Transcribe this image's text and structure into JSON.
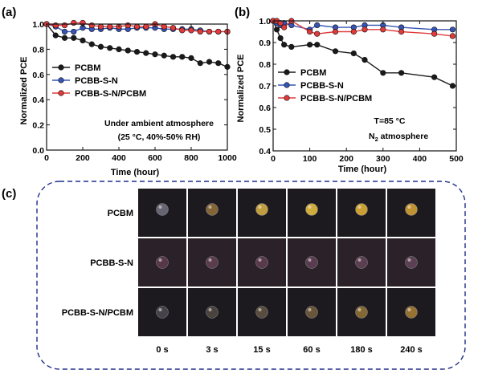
{
  "chart_data": [
    {
      "panel": "(a)",
      "type": "line",
      "xlabel": "Time (hour)",
      "ylabel": "Normalized PCE",
      "xlim": [
        0,
        1000
      ],
      "ylim": [
        0.0,
        1.0
      ],
      "xticks": [
        0,
        200,
        400,
        600,
        800,
        1000
      ],
      "yticks": [
        0.0,
        0.2,
        0.4,
        0.6,
        0.8,
        1.0
      ],
      "xtick_labels": [
        "0",
        "200",
        "400",
        "600",
        "800",
        "1000"
      ],
      "ytick_labels": [
        "0.0",
        "0.2",
        "0.4",
        "0.6",
        "0.8",
        "1.0"
      ],
      "reference_line": 1.0,
      "note_lines": [
        "Under ambient atmosphere",
        "(25 °C, 40%-50% RH)"
      ],
      "legend_position": "lower-left",
      "series": [
        {
          "name": "PCBM",
          "color": "#1a1a1a",
          "x": [
            0,
            50,
            100,
            150,
            200,
            250,
            300,
            350,
            400,
            450,
            500,
            550,
            600,
            650,
            700,
            750,
            800,
            850,
            900,
            950,
            1000
          ],
          "y": [
            1.0,
            0.91,
            0.89,
            0.89,
            0.87,
            0.84,
            0.82,
            0.81,
            0.8,
            0.79,
            0.78,
            0.77,
            0.76,
            0.75,
            0.74,
            0.74,
            0.73,
            0.69,
            0.7,
            0.69,
            0.66
          ]
        },
        {
          "name": "PCBB-S-N",
          "color": "#3554b5",
          "x": [
            0,
            50,
            100,
            150,
            200,
            250,
            300,
            350,
            400,
            450,
            500,
            550,
            600,
            650,
            700,
            750,
            800,
            850,
            900,
            950,
            1000
          ],
          "y": [
            1.0,
            0.98,
            0.94,
            0.94,
            0.97,
            0.96,
            0.96,
            0.97,
            0.96,
            0.96,
            0.97,
            0.97,
            0.97,
            0.96,
            0.96,
            0.96,
            0.96,
            0.95,
            0.94,
            0.94,
            0.94
          ]
        },
        {
          "name": "PCBB-S-N/PCBM",
          "color": "#e03a3a",
          "x": [
            0,
            50,
            100,
            150,
            200,
            250,
            300,
            350,
            400,
            450,
            500,
            550,
            600,
            650,
            700,
            750,
            800,
            850,
            900,
            950,
            1000
          ],
          "y": [
            1.0,
            0.99,
            0.99,
            1.01,
            1.01,
            0.99,
            0.98,
            0.98,
            0.98,
            0.99,
            0.98,
            0.98,
            1.0,
            0.98,
            0.97,
            0.95,
            0.95,
            0.94,
            0.94,
            0.94,
            0.94
          ]
        }
      ]
    },
    {
      "panel": "(b)",
      "type": "line",
      "xlabel": "Time (hour)",
      "ylabel": "Normalized PCE",
      "xlim": [
        0,
        500
      ],
      "ylim": [
        0.4,
        1.0
      ],
      "xticks": [
        0,
        100,
        200,
        300,
        400,
        500
      ],
      "yticks": [
        0.4,
        0.5,
        0.6,
        0.7,
        0.8,
        0.9,
        1.0
      ],
      "xtick_labels": [
        "0",
        "100",
        "200",
        "300",
        "400",
        "500"
      ],
      "ytick_labels": [
        "0.4",
        "0.5",
        "0.6",
        "0.7",
        "0.8",
        "0.9",
        "1.0"
      ],
      "reference_line": 1.0,
      "note_lines": [
        "T=85 °C",
        "N",
        "2",
        " atmosphere"
      ],
      "legend_position": "center-left",
      "series": [
        {
          "name": "PCBM",
          "color": "#1a1a1a",
          "x": [
            0,
            10,
            20,
            30,
            50,
            100,
            120,
            170,
            220,
            250,
            300,
            350,
            440,
            490
          ],
          "y": [
            1.0,
            0.96,
            0.92,
            0.89,
            0.88,
            0.89,
            0.89,
            0.86,
            0.85,
            0.82,
            0.76,
            0.76,
            0.74,
            0.7
          ]
        },
        {
          "name": "PCBB-S-N",
          "color": "#3554b5",
          "x": [
            0,
            10,
            20,
            30,
            50,
            100,
            120,
            170,
            220,
            250,
            300,
            350,
            440,
            490
          ],
          "y": [
            1.0,
            0.99,
            0.98,
            0.99,
            0.98,
            0.96,
            0.98,
            0.97,
            0.97,
            0.98,
            0.98,
            0.97,
            0.96,
            0.96
          ]
        },
        {
          "name": "PCBB-S-N/PCBM",
          "color": "#e03a3a",
          "x": [
            0,
            10,
            20,
            30,
            50,
            100,
            120,
            170,
            220,
            250,
            300,
            350,
            440,
            490
          ],
          "y": [
            1.0,
            1.0,
            0.99,
            0.97,
            1.0,
            0.95,
            0.94,
            0.95,
            0.95,
            0.96,
            0.96,
            0.95,
            0.94,
            0.93
          ]
        }
      ]
    }
  ],
  "photo_panel": {
    "tag": "(c)",
    "rows": [
      "PCBM",
      "PCBB-S-N",
      "PCBB-S-N/PCBM"
    ],
    "times": [
      "0 s",
      "3 s",
      "15 s",
      "60 s",
      "180 s",
      "240 s"
    ],
    "droplet_colors": [
      [
        "#6d6a78",
        "#8a6a3a",
        "#c9a642",
        "#d9b43e",
        "#d6a735",
        "#c89a34"
      ],
      [
        "#5a3a4a",
        "#5e3e4e",
        "#5c3c50",
        "#5c3e52",
        "#5e4054",
        "#5e4256"
      ],
      [
        "#48464c",
        "#4d4640",
        "#5c5040",
        "#6e5a3c",
        "#8a6d36",
        "#9c7634"
      ]
    ],
    "frame_color": "#1f2d8a"
  }
}
